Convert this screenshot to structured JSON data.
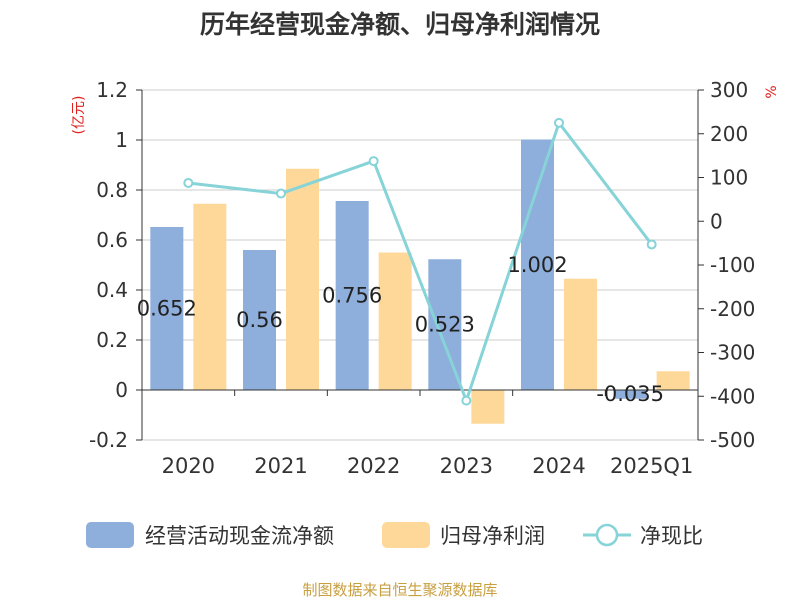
{
  "chart_data": {
    "type": "bar",
    "title": "历年经营现金净额、归母净利润情况",
    "categories": [
      "2020",
      "2021",
      "2022",
      "2023",
      "2024",
      "2025Q1"
    ],
    "y_left": {
      "unit": "(亿元)",
      "ylim": [
        -0.2,
        1.2
      ],
      "ticks": [
        "-0.2",
        "0",
        "0.2",
        "0.4",
        "0.6",
        "0.8",
        "1",
        "1.2"
      ]
    },
    "y_right": {
      "unit": "%",
      "ylim": [
        -500,
        300
      ],
      "ticks": [
        "-500",
        "-400",
        "-300",
        "-200",
        "-100",
        "0",
        "100",
        "200",
        "300"
      ]
    },
    "grid": true,
    "legend_position": "bottom",
    "series": [
      {
        "name": "经营活动现金流净额",
        "kind": "bar",
        "axis": "left",
        "color": "#8eaedb",
        "values": [
          0.652,
          0.56,
          0.756,
          0.523,
          1.002,
          -0.035
        ],
        "data_labels": [
          "0.652",
          "0.56",
          "0.756",
          "0.523",
          "1.002",
          "-0.035"
        ]
      },
      {
        "name": "归母净利润",
        "kind": "bar",
        "axis": "left",
        "color": "#fdd898",
        "values": [
          0.745,
          0.885,
          0.55,
          -0.135,
          0.445,
          0.075
        ]
      },
      {
        "name": "净现比",
        "kind": "line",
        "axis": "right",
        "color": "#86d3d8",
        "values": [
          87.5,
          63.3,
          137.5,
          -410,
          225,
          -53
        ]
      }
    ]
  },
  "footer": {
    "source": "制图数据来自恒生聚源数据库"
  }
}
